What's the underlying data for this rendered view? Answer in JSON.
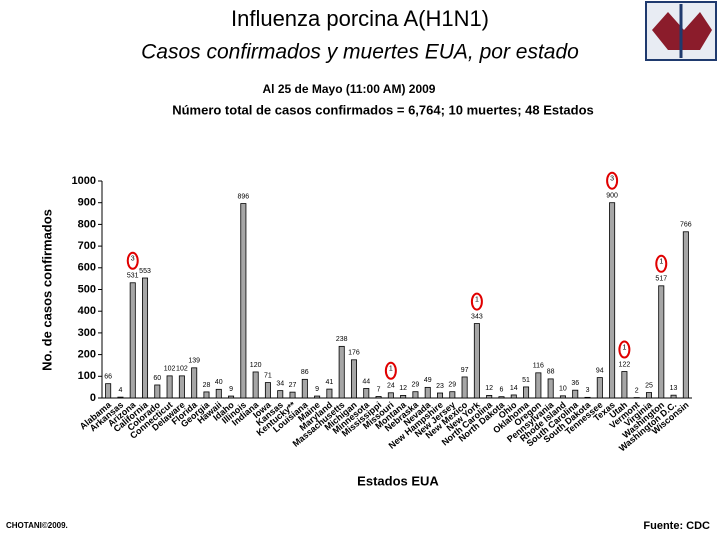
{
  "header": {
    "title": "Influenza porcina A(H1N1)",
    "subtitle": "Casos confirmados y muertes EUA, por estado"
  },
  "chart_data": {
    "type": "bar",
    "title": "Al 25 de Mayo (11:00 AM) 2009",
    "subtitle": "Número total de casos confirmados = 6,764; 10 muertes; 48 Estados",
    "x_label": "Estados EUA",
    "y_label": "No. de casos confirmados",
    "categories": [
      "Alabama",
      "Arkansas",
      "Arizona",
      "California",
      "Colorado",
      "Connecticut",
      "Delaware",
      "Florida",
      "Georgia",
      "Hawaii",
      "Idaho",
      "Illinois",
      "Indiana",
      "Iowa",
      "Kansas",
      "Kentucky**",
      "Louisiana",
      "Maine",
      "Maryland",
      "Massachusetts",
      "Michigan",
      "Minnesota",
      "Mississippi",
      "Missouri",
      "Montana",
      "Nebraska",
      "Nevada",
      "New Hampshire",
      "New Jersey",
      "New Mexico",
      "New York",
      "North Carolina",
      "North Dakota",
      "Ohio",
      "Oklahoma",
      "Oregon",
      "Pennsylvania",
      "Rhode Island",
      "South Carolina",
      "South Dakota",
      "Tennessee",
      "Texas",
      "Utah",
      "Vermont",
      "Virginia",
      "Washington",
      "Washington D.C.",
      "Wisconsin"
    ],
    "values": [
      66,
      4,
      531,
      553,
      60,
      102,
      102,
      139,
      28,
      40,
      9,
      896,
      120,
      71,
      34,
      27,
      86,
      9,
      41,
      238,
      176,
      44,
      7,
      24,
      12,
      29,
      49,
      23,
      29,
      97,
      343,
      12,
      6,
      14,
      51,
      116,
      88,
      10,
      36,
      3,
      94,
      900,
      122,
      2,
      25,
      517,
      13,
      766
    ],
    "color": "#a6a6a6",
    "ylim": [
      0,
      1000
    ],
    "yticks": [
      0,
      100,
      200,
      300,
      400,
      500,
      600,
      700,
      800,
      900,
      1000
    ],
    "grid": false,
    "annotations": [
      {
        "text": "3",
        "category": "Arizona"
      },
      {
        "text": "1",
        "category": "Missouri"
      },
      {
        "text": "1",
        "category": "New York"
      },
      {
        "text": "3",
        "category": "Texas"
      },
      {
        "text": "1",
        "category": "Utah"
      },
      {
        "text": "1",
        "category": "Washington"
      }
    ]
  },
  "footer": {
    "left": "CHOTANI©2009.",
    "right": "Fuente: CDC"
  }
}
